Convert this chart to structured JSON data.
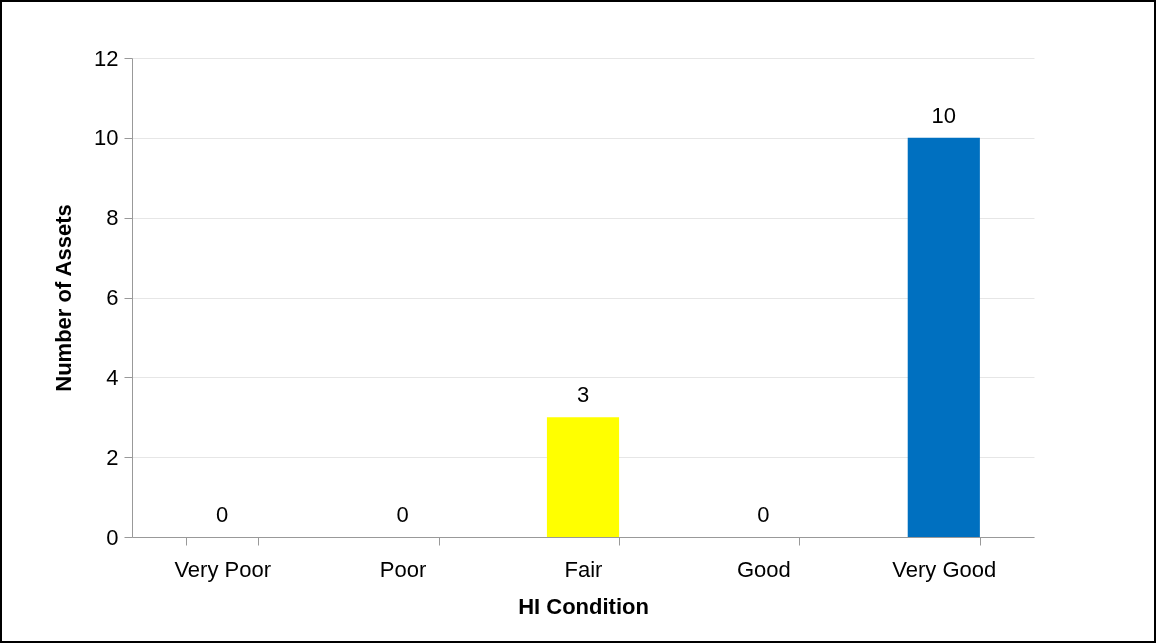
{
  "chart_data": {
    "type": "bar",
    "xlabel": "HI Condition",
    "ylabel": "Number of Assets",
    "categories": [
      "Very Poor",
      "Poor",
      "Fair",
      "Good",
      "Very Good"
    ],
    "values": [
      0,
      0,
      3,
      0,
      10
    ],
    "colors": [
      "#ff0000",
      "#ffc000",
      "#ffff00",
      "#92d050",
      "#0070c0"
    ],
    "ylim": [
      0,
      12
    ],
    "yticks": [
      0,
      2,
      4,
      6,
      8,
      10,
      12
    ],
    "grid": "y",
    "data_labels": true,
    "legend": false
  }
}
